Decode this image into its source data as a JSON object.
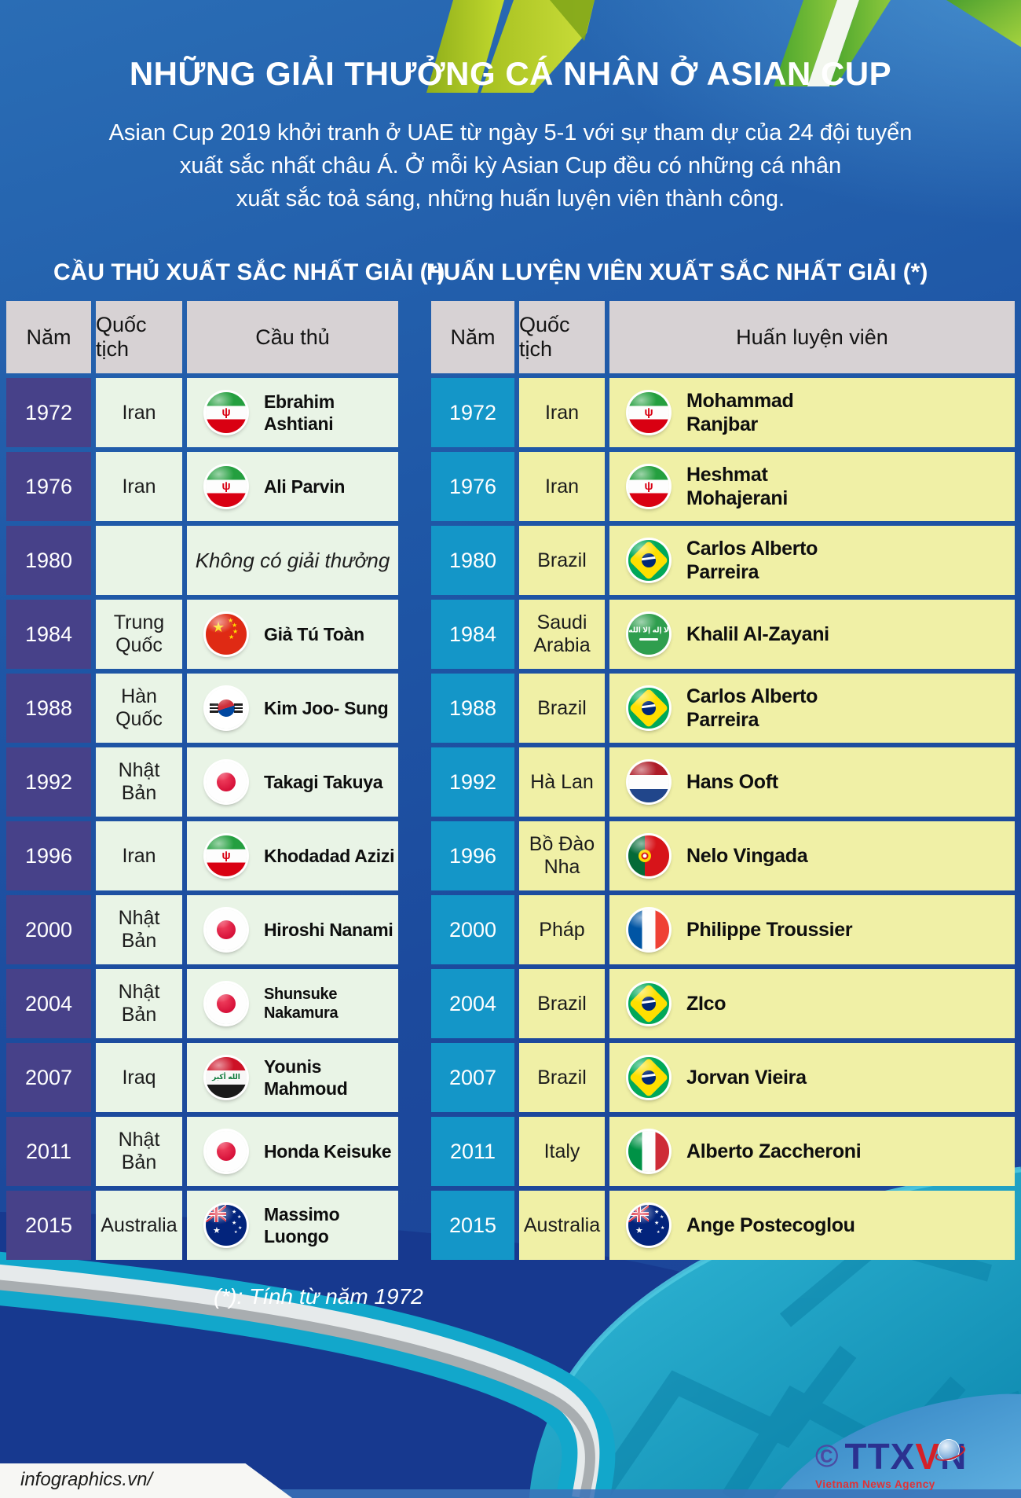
{
  "page": {
    "title": "NHỮNG GIẢI THƯỞNG CÁ NHÂN Ở ASIAN CUP",
    "subtitle_lines": [
      "Asian Cup 2019 khởi tranh ở UAE từ ngày 5-1 với sự tham dự của 24 đội tuyển",
      "xuất sắc nhất châu Á. Ở mỗi kỳ Asian Cup đều có những cá nhân",
      "xuất sắc toả sáng, những huấn luyện viên thành công."
    ],
    "footnote": "(*): Tính từ năm 1972",
    "credit": "infographics.vn/",
    "logo": {
      "copyright": "©",
      "text_left": "TTX",
      "text_v": "V",
      "text_right": "N",
      "subtext": "Vietnam News Agency"
    }
  },
  "colors": {
    "background_top": "#2a6db5",
    "background_bottom": "#1c4196",
    "header_cell": "#d7d2d4",
    "players_year_bg": "#474189",
    "players_cell_bg": "#e9f4e6",
    "coaches_year_bg": "#1496c8",
    "coaches_cell_bg": "#f0f0a6",
    "navy_swoosh": "#17398f",
    "teal_swoosh": "#12a7cb",
    "ribbon_green": "#9ab821"
  },
  "players_table": {
    "heading": "CẦU THỦ XUẤT SẮC NHẤT GIẢI (*)",
    "columns": [
      "Năm",
      "Quốc tịch",
      "Cầu thủ"
    ],
    "theme": {
      "year_bg": "#474189",
      "cell_bg": "#e9f4e6"
    },
    "rows": [
      {
        "year": "1972",
        "nationality": "Iran",
        "flag": "iran",
        "name": "Ebrahim Ashtiani"
      },
      {
        "year": "1976",
        "nationality": "Iran",
        "flag": "iran",
        "name": "Ali Parvin"
      },
      {
        "year": "1980",
        "nationality": "",
        "flag": null,
        "name": "Không có giải thưởng",
        "no_award": true
      },
      {
        "year": "1984",
        "nationality": "Trung Quốc",
        "flag": "china",
        "name": "Giả Tú Toàn"
      },
      {
        "year": "1988",
        "nationality": "Hàn Quốc",
        "flag": "south_korea",
        "name": "Kim Joo- Sung"
      },
      {
        "year": "1992",
        "nationality": "Nhật Bản",
        "flag": "japan",
        "name": "Takagi Takuya"
      },
      {
        "year": "1996",
        "nationality": "Iran",
        "flag": "iran",
        "name": "Khodadad Azizi"
      },
      {
        "year": "2000",
        "nationality": "Nhật Bản",
        "flag": "japan",
        "name": "Hiroshi Nanami"
      },
      {
        "year": "2004",
        "nationality": "Nhật Bản",
        "flag": "japan",
        "name": "Shunsuke Nakamura",
        "name_size": 20
      },
      {
        "year": "2007",
        "nationality": "Iraq",
        "flag": "iraq",
        "name": "Younis Mahmoud"
      },
      {
        "year": "2011",
        "nationality": "Nhật Bản",
        "flag": "japan",
        "name": "Honda Keisuke"
      },
      {
        "year": "2015",
        "nationality": "Australia",
        "flag": "australia",
        "name": "Massimo Luongo"
      }
    ]
  },
  "coaches_table": {
    "heading": "HUẤN LUYỆN VIÊN XUẤT SẮC NHẤT GIẢI (*)",
    "columns": [
      "Năm",
      "Quốc tịch",
      "Huấn luyện viên"
    ],
    "theme": {
      "year_bg": "#1496c8",
      "cell_bg": "#f0f0a6"
    },
    "rows": [
      {
        "year": "1972",
        "nationality": "Iran",
        "flag": "iran",
        "name": "Mohammad\nRanjbar",
        "name_size": 25
      },
      {
        "year": "1976",
        "nationality": "Iran",
        "flag": "iran",
        "name": "Heshmat\nMohajerani",
        "name_size": 25
      },
      {
        "year": "1980",
        "nationality": "Brazil",
        "flag": "brazil",
        "name": "Carlos Alberto\nParreira",
        "name_size": 25
      },
      {
        "year": "1984",
        "nationality": "Saudi Arabia",
        "flag": "saudi_arabia",
        "name": "Khalil Al-Zayani",
        "name_size": 25
      },
      {
        "year": "1988",
        "nationality": "Brazil",
        "flag": "brazil",
        "name": "Carlos Alberto\nParreira",
        "name_size": 25
      },
      {
        "year": "1992",
        "nationality": "Hà Lan",
        "flag": "netherlands",
        "name": "Hans Ooft",
        "name_size": 25
      },
      {
        "year": "1996",
        "nationality": "Bồ Đào Nha",
        "flag": "portugal",
        "name": "Nelo Vingada",
        "name_size": 25
      },
      {
        "year": "2000",
        "nationality": "Pháp",
        "flag": "france",
        "name": "Philippe Troussier",
        "name_size": 25
      },
      {
        "year": "2004",
        "nationality": "Brazil",
        "flag": "brazil",
        "name": "ZIco",
        "name_size": 25
      },
      {
        "year": "2007",
        "nationality": "Brazil",
        "flag": "brazil",
        "name": "Jorvan Vieira",
        "name_size": 25
      },
      {
        "year": "2011",
        "nationality": "Italy",
        "flag": "italy",
        "name": "Alberto Zaccheroni",
        "name_size": 25
      },
      {
        "year": "2015",
        "nationality": "Australia",
        "flag": "australia",
        "name": "Ange Postecoglou",
        "name_size": 25
      }
    ]
  }
}
